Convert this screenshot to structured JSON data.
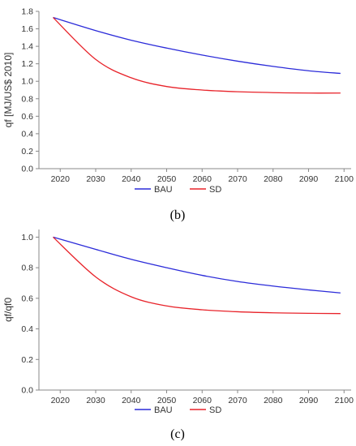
{
  "chart_data": [
    {
      "type": "line",
      "caption": "(b)",
      "title": "",
      "xlabel": "",
      "ylabel": "qf [MJ/US$ 2010]",
      "xlim": [
        2014,
        2102
      ],
      "ylim": [
        0.0,
        1.8
      ],
      "xticks": [
        2020,
        2030,
        2040,
        2050,
        2060,
        2070,
        2080,
        2090,
        2100
      ],
      "yticks": [
        "0.0",
        "0.2",
        "0.4",
        "0.6",
        "0.8",
        "1.0",
        "1.2",
        "1.4",
        "1.6",
        "1.8"
      ],
      "grid": false,
      "legend": "bottom",
      "x": [
        2018,
        2030,
        2040,
        2050,
        2060,
        2070,
        2080,
        2090,
        2099
      ],
      "series": [
        {
          "name": "BAU",
          "color": "#2b2bd9",
          "values": [
            1.73,
            1.58,
            1.47,
            1.38,
            1.3,
            1.23,
            1.17,
            1.12,
            1.09
          ]
        },
        {
          "name": "SD",
          "color": "#e8232a",
          "values": [
            1.73,
            1.25,
            1.04,
            0.94,
            0.9,
            0.88,
            0.87,
            0.865,
            0.865
          ]
        }
      ]
    },
    {
      "type": "line",
      "caption": "(c)",
      "title": "",
      "xlabel": "",
      "ylabel": "qf/qf0",
      "xlim": [
        2014,
        2102
      ],
      "ylim": [
        0.0,
        1.05
      ],
      "xticks": [
        2020,
        2030,
        2040,
        2050,
        2060,
        2070,
        2080,
        2090,
        2100
      ],
      "yticks": [
        "0.0",
        "0.2",
        "0.4",
        "0.6",
        "0.8",
        "1.0"
      ],
      "grid": false,
      "legend": "bottom",
      "x": [
        2018,
        2030,
        2040,
        2050,
        2060,
        2070,
        2080,
        2090,
        2099
      ],
      "series": [
        {
          "name": "BAU",
          "color": "#2b2bd9",
          "values": [
            1.0,
            0.92,
            0.855,
            0.8,
            0.75,
            0.71,
            0.68,
            0.655,
            0.635
          ]
        },
        {
          "name": "SD",
          "color": "#e8232a",
          "values": [
            1.0,
            0.74,
            0.61,
            0.55,
            0.525,
            0.512,
            0.505,
            0.502,
            0.5
          ]
        }
      ]
    }
  ]
}
